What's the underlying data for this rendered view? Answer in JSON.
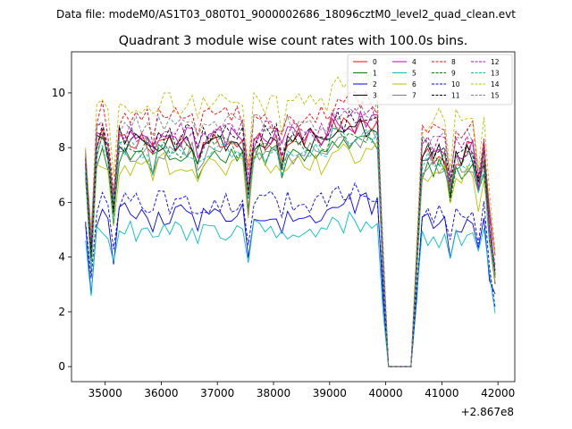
{
  "figure": {
    "suptitle": "Data file: modeM0/AS1T03_080T01_9000002686_18096cztM0_level2_quad_clean.evt"
  },
  "chart_data": {
    "type": "line",
    "title": "Quadrant 3 module wise count rates with 100.0s bins.",
    "xlabel": "",
    "ylabel": "",
    "x_offset_label": "+2.867e8",
    "xlim": [
      34400,
      42300
    ],
    "ylim": [
      -0.55,
      11.5
    ],
    "xticks": [
      35000,
      36000,
      37000,
      38000,
      39000,
      40000,
      41000,
      42000
    ],
    "xtick_labels": [
      "35000",
      "36000",
      "37000",
      "38000",
      "39000",
      "40000",
      "41000",
      "42000"
    ],
    "yticks": [
      0,
      2,
      4,
      6,
      8,
      10
    ],
    "ytick_labels": [
      "0",
      "2",
      "4",
      "6",
      "8",
      "10"
    ],
    "grid": false,
    "legend_position": "top-right",
    "bin_seconds": 100,
    "x_start": 34650,
    "x_step": 100,
    "n_points": 74,
    "gap_start_index": 54,
    "gap_end_index": 58,
    "series": [
      {
        "name": "0",
        "color": "#ff0000",
        "style": "solid",
        "level": 8.3,
        "d0": 7.3
      },
      {
        "name": "1",
        "color": "#008000",
        "style": "solid",
        "level": 7.7,
        "d0": 6.8
      },
      {
        "name": "2",
        "color": "#0000ff",
        "style": "solid",
        "level": 5.6,
        "d0": 5.2
      },
      {
        "name": "3",
        "color": "#000000",
        "style": "solid",
        "level": 8.2,
        "d0": 7.4
      },
      {
        "name": "4",
        "color": "#bf00bf",
        "style": "solid",
        "level": 8.4,
        "d0": 7.5
      },
      {
        "name": "5",
        "color": "#00bfbf",
        "style": "solid",
        "level": 5.0,
        "d0": 4.6
      },
      {
        "name": "6",
        "color": "#bfbf00",
        "style": "solid",
        "level": 7.4,
        "d0": 6.9
      },
      {
        "name": "7",
        "color": "#808080",
        "style": "solid",
        "level": 7.8,
        "d0": 7.0
      },
      {
        "name": "8",
        "color": "#ff0000",
        "style": "dashed",
        "level": 9.1,
        "d0": 7.8
      },
      {
        "name": "9",
        "color": "#008000",
        "style": "dashed",
        "level": 8.0,
        "d0": 7.1
      },
      {
        "name": "10",
        "color": "#0000ff",
        "style": "dashed",
        "level": 6.0,
        "d0": 5.3
      },
      {
        "name": "11",
        "color": "#000000",
        "style": "dashed",
        "level": 8.5,
        "d0": 7.6
      },
      {
        "name": "12",
        "color": "#bf00bf",
        "style": "dashed",
        "level": 8.6,
        "d0": 7.7
      },
      {
        "name": "13",
        "color": "#00bfbf",
        "style": "dashed",
        "level": 7.9,
        "d0": 7.2
      },
      {
        "name": "14",
        "color": "#bfbf00",
        "style": "dashed",
        "level": 9.6,
        "d0": 8.0
      },
      {
        "name": "15",
        "color": "#808080",
        "style": "dashed",
        "level": 8.9,
        "d0": 7.9
      }
    ]
  }
}
